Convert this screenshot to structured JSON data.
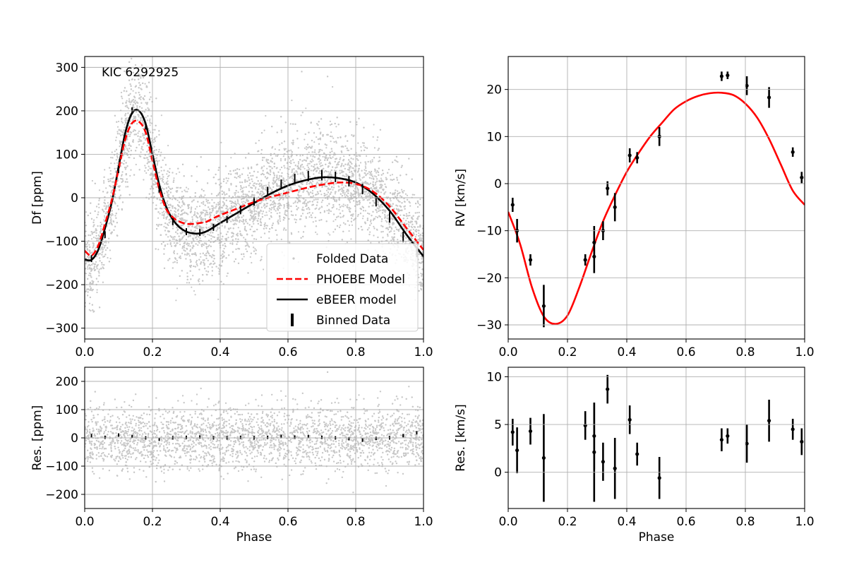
{
  "chart_data": [
    {
      "id": "lc",
      "type": "scatter",
      "title": "",
      "annotation": "KIC 6292925",
      "xlabel": "",
      "ylabel": "Df [ppm]",
      "xlim": [
        0,
        1
      ],
      "ylim": [
        -325,
        325
      ],
      "xticks": [
        0,
        0.2,
        0.4,
        0.6,
        0.8,
        1.0
      ],
      "xtick_labels": [
        "0.0",
        "0.2",
        "0.4",
        "0.6",
        "0.8",
        "1.0"
      ],
      "yticks": [
        -300,
        -200,
        -100,
        0,
        100,
        200,
        300
      ],
      "ytick_labels": [
        "−300",
        "−200",
        "−100",
        "0",
        "100",
        "200",
        "300"
      ],
      "grid": true,
      "legend_position": "lower-right",
      "legend": [
        {
          "label": "Folded Data",
          "key": "folded"
        },
        {
          "label": "PHOEBE Model",
          "key": "phoebe"
        },
        {
          "label": "eBEER model",
          "key": "ebeer"
        },
        {
          "label": "Binned Data",
          "key": "binned"
        }
      ],
      "series": [
        {
          "name": "eBEER model",
          "kind": "line",
          "color": "#000000",
          "dash": false,
          "x": [
            0.0,
            0.02,
            0.04,
            0.06,
            0.08,
            0.1,
            0.12,
            0.14,
            0.16,
            0.18,
            0.2,
            0.22,
            0.24,
            0.26,
            0.28,
            0.3,
            0.32,
            0.34,
            0.36,
            0.38,
            0.4,
            0.45,
            0.5,
            0.55,
            0.6,
            0.65,
            0.7,
            0.75,
            0.8,
            0.85,
            0.9,
            0.95,
            1.0
          ],
          "y": [
            -142,
            -143,
            -120,
            -70,
            -10,
            70,
            150,
            195,
            200,
            170,
            100,
            30,
            -20,
            -50,
            -68,
            -78,
            -82,
            -82,
            -77,
            -68,
            -58,
            -35,
            -12,
            10,
            28,
            40,
            47,
            45,
            35,
            10,
            -30,
            -85,
            -135
          ]
        },
        {
          "name": "PHOEBE Model",
          "kind": "line",
          "color": "#ff0000",
          "dash": true,
          "x": [
            0.0,
            0.02,
            0.04,
            0.06,
            0.08,
            0.1,
            0.12,
            0.14,
            0.16,
            0.18,
            0.2,
            0.22,
            0.24,
            0.26,
            0.28,
            0.3,
            0.32,
            0.34,
            0.36,
            0.38,
            0.4,
            0.45,
            0.5,
            0.55,
            0.6,
            0.65,
            0.7,
            0.75,
            0.8,
            0.85,
            0.9,
            0.95,
            1.0
          ],
          "y": [
            -122,
            -133,
            -110,
            -60,
            -5,
            65,
            135,
            172,
            175,
            150,
            85,
            20,
            -25,
            -45,
            -55,
            -60,
            -60,
            -58,
            -55,
            -47,
            -40,
            -25,
            -10,
            2,
            12,
            22,
            30,
            35,
            32,
            15,
            -20,
            -70,
            -120
          ]
        },
        {
          "name": "Binned Data",
          "kind": "errorbar",
          "color": "#000000",
          "x": [
            0.02,
            0.06,
            0.1,
            0.14,
            0.18,
            0.22,
            0.26,
            0.3,
            0.34,
            0.38,
            0.42,
            0.46,
            0.5,
            0.54,
            0.58,
            0.62,
            0.66,
            0.7,
            0.74,
            0.78,
            0.82,
            0.86,
            0.9,
            0.94,
            0.98
          ],
          "y": [
            -140,
            -85,
            65,
            200,
            165,
            20,
            -55,
            -78,
            -80,
            -68,
            -50,
            -28,
            -8,
            15,
            32,
            45,
            50,
            52,
            48,
            38,
            20,
            -8,
            -45,
            -90,
            -125
          ],
          "err": [
            8,
            8,
            8,
            8,
            8,
            8,
            8,
            8,
            8,
            8,
            8,
            10,
            10,
            10,
            10,
            10,
            12,
            12,
            12,
            12,
            12,
            12,
            12,
            12,
            12
          ]
        }
      ]
    },
    {
      "id": "lcres",
      "type": "scatter",
      "title": "",
      "xlabel": "Phase",
      "ylabel": "Res. [ppm]",
      "xlim": [
        0,
        1
      ],
      "ylim": [
        -250,
        250
      ],
      "xticks": [
        0,
        0.2,
        0.4,
        0.6,
        0.8,
        1.0
      ],
      "xtick_labels": [
        "0.0",
        "0.2",
        "0.4",
        "0.6",
        "0.8",
        "1.0"
      ],
      "yticks": [
        -200,
        -100,
        0,
        100,
        200
      ],
      "ytick_labels": [
        "−200",
        "−100",
        "0",
        "100",
        "200"
      ],
      "grid": true,
      "series": [
        {
          "name": "Binned residuals",
          "kind": "errorbar",
          "color": "#000000",
          "x": [
            0.02,
            0.06,
            0.1,
            0.14,
            0.18,
            0.22,
            0.26,
            0.3,
            0.34,
            0.38,
            0.42,
            0.46,
            0.5,
            0.54,
            0.58,
            0.62,
            0.66,
            0.7,
            0.74,
            0.78,
            0.82,
            0.86,
            0.9,
            0.94,
            0.98
          ],
          "y": [
            8,
            2,
            10,
            5,
            0,
            -5,
            0,
            2,
            3,
            0,
            0,
            2,
            0,
            2,
            5,
            3,
            5,
            2,
            0,
            -3,
            -8,
            -2,
            0,
            8,
            18
          ],
          "err": [
            6,
            6,
            6,
            6,
            6,
            6,
            6,
            6,
            6,
            6,
            6,
            6,
            6,
            6,
            6,
            6,
            6,
            6,
            6,
            6,
            6,
            6,
            6,
            6,
            6
          ]
        }
      ]
    },
    {
      "id": "rv",
      "type": "scatter",
      "title": "",
      "xlabel": "",
      "ylabel": "RV [km/s]",
      "xlim": [
        0,
        1
      ],
      "ylim": [
        -33,
        27
      ],
      "xticks": [
        0,
        0.2,
        0.4,
        0.6,
        0.8,
        1.0
      ],
      "xtick_labels": [
        "0.0",
        "0.2",
        "0.4",
        "0.6",
        "0.8",
        "1.0"
      ],
      "yticks": [
        -30,
        -20,
        -10,
        0,
        10,
        20
      ],
      "ytick_labels": [
        "−30",
        "−20",
        "−10",
        "0",
        "10",
        "20"
      ],
      "grid": true,
      "series": [
        {
          "name": "RV model",
          "kind": "line",
          "color": "#ff0000",
          "dash": false,
          "x": [
            0.0,
            0.04,
            0.08,
            0.12,
            0.16,
            0.2,
            0.24,
            0.28,
            0.32,
            0.36,
            0.4,
            0.44,
            0.48,
            0.52,
            0.56,
            0.6,
            0.64,
            0.68,
            0.72,
            0.76,
            0.8,
            0.84,
            0.88,
            0.92,
            0.96,
            1.0
          ],
          "y": [
            -6,
            -12.8,
            -22,
            -28.2,
            -29.8,
            -28,
            -22,
            -14.8,
            -8,
            -2.5,
            2.5,
            6.5,
            10.1,
            13,
            15.8,
            17.5,
            18.6,
            19.2,
            19.3,
            18.8,
            17,
            14,
            9.5,
            4,
            -1.5,
            -4.5
          ]
        },
        {
          "name": "RV data",
          "kind": "errorbar",
          "color": "#000000",
          "x": [
            0.015,
            0.03,
            0.075,
            0.12,
            0.26,
            0.29,
            0.29,
            0.32,
            0.335,
            0.36,
            0.41,
            0.435,
            0.51,
            0.72,
            0.74,
            0.805,
            0.88,
            0.96,
            0.99
          ],
          "y": [
            -4.5,
            -10,
            -16.2,
            -26,
            -16.2,
            -12.5,
            -15.5,
            -10,
            -1,
            -5,
            6,
            5.5,
            10,
            22.8,
            23,
            20.8,
            18.3,
            6.7,
            1.3
          ],
          "err": [
            1.5,
            2.5,
            1.2,
            4.5,
            1.2,
            3.5,
            3.5,
            2,
            1.5,
            3,
            1.5,
            1.2,
            2,
            1,
            0.8,
            2,
            2.2,
            1,
            1.2
          ]
        }
      ]
    },
    {
      "id": "rvres",
      "type": "scatter",
      "title": "",
      "xlabel": "Phase",
      "ylabel": "Res. [km/s]",
      "xlim": [
        0,
        1
      ],
      "ylim": [
        -3.8,
        11
      ],
      "xticks": [
        0,
        0.2,
        0.4,
        0.6,
        0.8,
        1.0
      ],
      "xtick_labels": [
        "0.0",
        "0.2",
        "0.4",
        "0.6",
        "0.8",
        "1.0"
      ],
      "yticks": [
        0,
        5,
        10
      ],
      "ytick_labels": [
        "0",
        "5",
        "10"
      ],
      "grid": true,
      "series": [
        {
          "name": "RV residuals",
          "kind": "errorbar",
          "color": "#000000",
          "x": [
            0.015,
            0.03,
            0.075,
            0.12,
            0.26,
            0.29,
            0.29,
            0.32,
            0.335,
            0.36,
            0.41,
            0.435,
            0.51,
            0.72,
            0.74,
            0.805,
            0.88,
            0.96,
            0.99
          ],
          "y": [
            4.2,
            2.3,
            4.3,
            1.5,
            4.9,
            3.8,
            2.1,
            1.1,
            8.7,
            0.4,
            5.5,
            1.9,
            -0.6,
            3.4,
            3.8,
            3.0,
            5.4,
            4.5,
            3.2
          ],
          "err": [
            1.4,
            2.4,
            1.4,
            4.6,
            1.5,
            3.5,
            5.2,
            2.0,
            1.5,
            3.2,
            1.5,
            1.2,
            2.2,
            1.2,
            0.8,
            2.0,
            2.2,
            1.1,
            1.4
          ]
        }
      ]
    }
  ],
  "colors": {
    "scatter": "#c8c8c8",
    "grid": "#b0b0b0",
    "axis": "#000000",
    "phoebe": "#ff0000",
    "ebeer": "#000000",
    "rvmodel": "#ff0000"
  }
}
